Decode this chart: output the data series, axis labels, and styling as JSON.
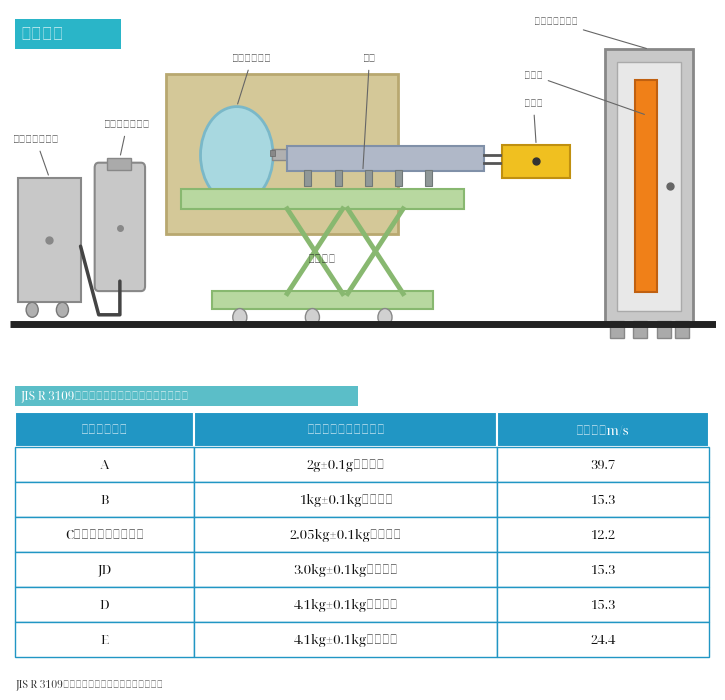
{
  "title_label": "試験装置",
  "title_bg_color": "#2ab5c8",
  "title_text_color": "#ffffff",
  "subtitle_label": "JIS R 3109記載：加撃体の種類及び衝突速度表",
  "subtitle_bg": "#5bbec8",
  "footer_label": "JIS R 3109記載：加撃体の種類及び衝突速度表",
  "table_header_bg": "#2196c4",
  "table_header_color": "#ffffff",
  "table_border_color": "#2196c4",
  "table_headers": [
    "加撃体の種類",
    "加撃体の質量（材質）",
    "衝撃速度m/s"
  ],
  "table_rows": [
    [
      "A",
      "2g±0.1g（鋼球）",
      "39.7"
    ],
    [
      "B",
      "1kg±0.1kg（木材）",
      "15.3"
    ],
    [
      "C（屋根瓦破片相当）",
      "2.05kg±0.1kg（木材）",
      "12.2"
    ],
    [
      "JD",
      "3.0kg±0.1kg（木材）",
      "15.3"
    ],
    [
      "D",
      "4.1kg±0.1kg（木材）",
      "15.3"
    ],
    [
      "E",
      "4.1kg±0.1kg（木材）",
      "24.4"
    ]
  ],
  "labels": {
    "compressor": "コンプレッサー",
    "reserve_tank": "リザーブタンク",
    "air_tank": "エアータンク",
    "barrel": "砲身",
    "mount": "取付台座",
    "specimen_jig": "試験体取付治具",
    "specimen": "試験体",
    "impactor": "加撃体"
  }
}
